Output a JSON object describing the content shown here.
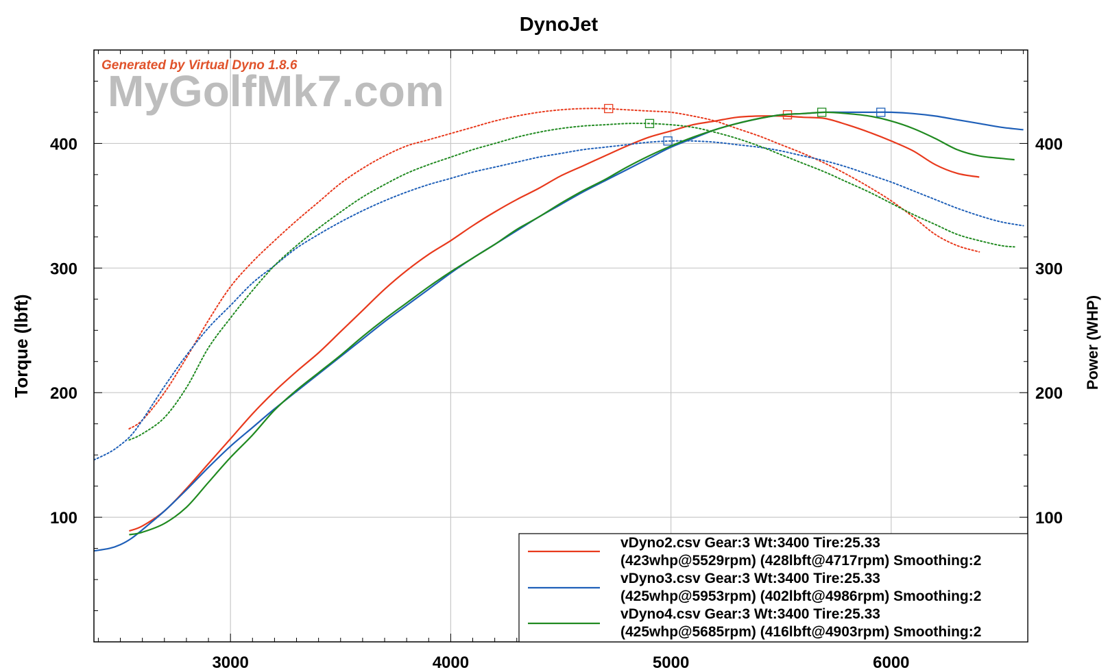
{
  "chart_data": {
    "type": "line",
    "title": "DynoJet",
    "generator_text": "Generated by Virtual Dyno 1.8.6",
    "watermark": "MyGolfMk7.com",
    "xlabel": "",
    "ylabel_left": "Torque (lbft)",
    "ylabel_right": "Power (WHP)",
    "xlim": [
      2380,
      6620
    ],
    "ylim": [
      0,
      475
    ],
    "x_ticks": [
      3000,
      4000,
      5000,
      6000
    ],
    "x_tick_labels": [
      "3000",
      "4000",
      "5000",
      "6000"
    ],
    "y_ticks": [
      100,
      200,
      300,
      400
    ],
    "y_tick_labels": [
      "100",
      "200",
      "300",
      "400"
    ],
    "grid": true,
    "legend_position": "bottom-right",
    "series": [
      {
        "color": "#e8391c",
        "legend_lines": [
          "vDyno2.csv Gear:3 Wt:3400 Tire:25.33",
          "(423whp@5529rpm) (428lbft@4717rpm) Smoothing:2"
        ],
        "power": {
          "x": [
            2540,
            2600,
            2700,
            2800,
            2900,
            3000,
            3100,
            3200,
            3300,
            3400,
            3500,
            3600,
            3700,
            3800,
            3900,
            4000,
            4100,
            4200,
            4300,
            4400,
            4500,
            4600,
            4700,
            4800,
            4900,
            5000,
            5100,
            5200,
            5300,
            5400,
            5500,
            5600,
            5700,
            5800,
            5900,
            6000,
            6100,
            6200,
            6300,
            6400
          ],
          "y": [
            89,
            93,
            105,
            123,
            143,
            163,
            183,
            201,
            217,
            232,
            249,
            266,
            283,
            298,
            311,
            322,
            334,
            345,
            355,
            364,
            374,
            382,
            390,
            398,
            405,
            410,
            415,
            418,
            421,
            422,
            422,
            421,
            420,
            415,
            409,
            402,
            394,
            383,
            376,
            373
          ]
        },
        "torque": {
          "x": [
            2540,
            2600,
            2700,
            2800,
            2900,
            3000,
            3100,
            3200,
            3300,
            3400,
            3500,
            3600,
            3700,
            3800,
            3900,
            4000,
            4100,
            4200,
            4300,
            4400,
            4500,
            4600,
            4700,
            4800,
            4900,
            5000,
            5100,
            5200,
            5300,
            5400,
            5500,
            5600,
            5700,
            5800,
            5900,
            6000,
            6100,
            6200,
            6300,
            6400
          ],
          "y": [
            171,
            178,
            200,
            228,
            258,
            285,
            305,
            322,
            338,
            353,
            368,
            380,
            390,
            398,
            403,
            408,
            413,
            418,
            422,
            425,
            427,
            428,
            428,
            427,
            426,
            425,
            422,
            418,
            412,
            406,
            399,
            392,
            384,
            375,
            365,
            354,
            341,
            327,
            318,
            313
          ]
        },
        "markers": [
          {
            "x": 4717,
            "y": 428
          },
          {
            "x": 5529,
            "y": 423
          }
        ]
      },
      {
        "color": "#1e5fb8",
        "legend_lines": [
          "vDyno3.csv Gear:3 Wt:3400 Tire:25.33",
          "(425whp@5953rpm) (402lbft@4986rpm) Smoothing:2"
        ],
        "power": {
          "x": [
            2380,
            2450,
            2500,
            2550,
            2600,
            2700,
            2800,
            2900,
            3000,
            3100,
            3200,
            3300,
            3400,
            3500,
            3600,
            3700,
            3800,
            3900,
            4000,
            4100,
            4200,
            4300,
            4400,
            4500,
            4600,
            4700,
            4800,
            4900,
            5000,
            5100,
            5200,
            5300,
            5400,
            5500,
            5600,
            5700,
            5800,
            5900,
            6000,
            6100,
            6200,
            6300,
            6400,
            6500,
            6600
          ],
          "y": [
            73,
            75,
            78,
            83,
            90,
            105,
            122,
            140,
            157,
            172,
            187,
            201,
            215,
            229,
            243,
            257,
            270,
            283,
            296,
            308,
            319,
            330,
            341,
            351,
            361,
            370,
            379,
            388,
            397,
            404,
            411,
            416,
            420,
            423,
            424,
            425,
            425,
            425,
            425,
            424,
            422,
            419,
            416,
            413,
            411
          ]
        },
        "torque": {
          "x": [
            2380,
            2450,
            2500,
            2550,
            2600,
            2700,
            2800,
            2900,
            3000,
            3100,
            3200,
            3300,
            3400,
            3500,
            3600,
            3700,
            3800,
            3900,
            4000,
            4100,
            4200,
            4300,
            4400,
            4500,
            4600,
            4700,
            4800,
            4900,
            5000,
            5100,
            5200,
            5300,
            5400,
            5500,
            5600,
            5700,
            5800,
            5900,
            6000,
            6100,
            6200,
            6300,
            6400,
            6500,
            6600
          ],
          "y": [
            146,
            152,
            158,
            166,
            178,
            205,
            230,
            252,
            270,
            288,
            302,
            316,
            327,
            337,
            346,
            354,
            361,
            367,
            372,
            377,
            381,
            385,
            389,
            392,
            395,
            397,
            399,
            401,
            402,
            402,
            401,
            399,
            397,
            394,
            390,
            386,
            381,
            375,
            369,
            362,
            355,
            348,
            342,
            337,
            334
          ]
        },
        "markers": [
          {
            "x": 4986,
            "y": 402
          },
          {
            "x": 5953,
            "y": 425
          }
        ]
      },
      {
        "color": "#208a20",
        "legend_lines": [
          "vDyno4.csv Gear:3 Wt:3400 Tire:25.33",
          "(425whp@5685rpm) (416lbft@4903rpm) Smoothing:2"
        ],
        "power": {
          "x": [
            2540,
            2600,
            2700,
            2800,
            2900,
            3000,
            3100,
            3200,
            3300,
            3400,
            3500,
            3600,
            3700,
            3800,
            3900,
            4000,
            4100,
            4200,
            4300,
            4400,
            4500,
            4600,
            4700,
            4800,
            4900,
            5000,
            5100,
            5200,
            5300,
            5400,
            5500,
            5600,
            5700,
            5800,
            5900,
            6000,
            6100,
            6200,
            6300,
            6400,
            6500,
            6560
          ],
          "y": [
            86,
            88,
            95,
            108,
            128,
            148,
            166,
            186,
            202,
            216,
            230,
            245,
            259,
            272,
            285,
            297,
            308,
            319,
            331,
            341,
            352,
            362,
            371,
            381,
            390,
            398,
            405,
            411,
            416,
            420,
            423,
            424,
            425,
            424,
            422,
            418,
            412,
            404,
            395,
            390,
            388,
            387
          ]
        },
        "torque": {
          "x": [
            2540,
            2600,
            2700,
            2800,
            2900,
            3000,
            3100,
            3200,
            3300,
            3400,
            3500,
            3600,
            3700,
            3800,
            3900,
            4000,
            4100,
            4200,
            4300,
            4400,
            4500,
            4600,
            4700,
            4800,
            4900,
            5000,
            5100,
            5200,
            5300,
            5400,
            5500,
            5600,
            5700,
            5800,
            5900,
            6000,
            6100,
            6200,
            6300,
            6400,
            6500,
            6560
          ],
          "y": [
            162,
            167,
            180,
            204,
            236,
            260,
            282,
            302,
            318,
            332,
            345,
            357,
            367,
            376,
            383,
            389,
            395,
            400,
            405,
            409,
            412,
            414,
            415,
            416,
            416,
            415,
            413,
            409,
            404,
            398,
            391,
            384,
            377,
            369,
            361,
            352,
            343,
            335,
            327,
            322,
            318,
            317
          ]
        },
        "markers": [
          {
            "x": 4903,
            "y": 416
          },
          {
            "x": 5685,
            "y": 425
          }
        ]
      }
    ]
  }
}
